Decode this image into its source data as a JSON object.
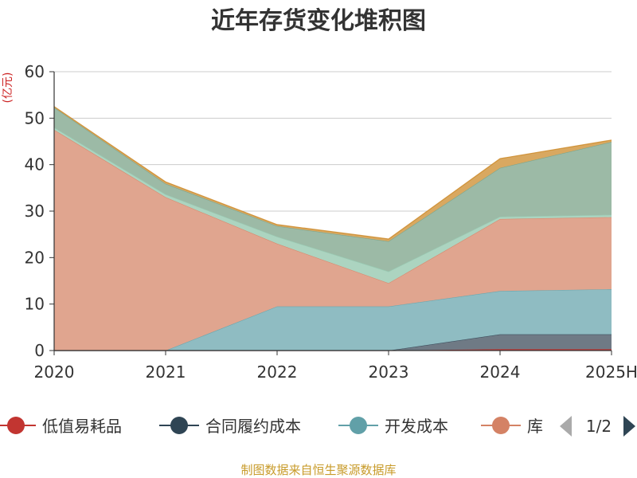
{
  "chart_data": {
    "type": "area",
    "stacked": true,
    "title": "近年存货变化堆积图",
    "unit_label": "(亿元)",
    "categories": [
      "2020",
      "2021",
      "2022",
      "2023",
      "2024",
      "2025H"
    ],
    "ylim": [
      0,
      60
    ],
    "y_ticks": [
      "0",
      "10",
      "20",
      "30",
      "40",
      "50",
      "60"
    ],
    "grid": true,
    "legend_position": "bottom",
    "series": [
      {
        "name": "低值易耗品",
        "color": "#c23531",
        "values": [
          0,
          0,
          0,
          0,
          0.3,
          0.3
        ],
        "area_color": "#c23531"
      },
      {
        "name": "合同履约成本",
        "color": "#2f4554",
        "values": [
          0,
          0,
          0,
          0,
          3.2,
          3.2
        ],
        "area_color": "#6f7a85"
      },
      {
        "name": "开发成本",
        "color": "#61a0a8",
        "values": [
          0,
          0,
          9.5,
          9.5,
          9.3,
          9.7
        ],
        "area_color": "#8fbcc2"
      },
      {
        "name": "库存商品",
        "color": "#d48265",
        "values": [
          47.5,
          33,
          13.5,
          5,
          15.5,
          15.5
        ],
        "area_color": "#e0a58f"
      },
      {
        "name": "",
        "color": "#91c7ae",
        "values": [
          0.5,
          0.6,
          1.5,
          2.5,
          0.5,
          0.5
        ],
        "area_color": "#acd4c0"
      },
      {
        "name": "",
        "color": "#749f83",
        "values": [
          4.3,
          2.3,
          2.3,
          6.5,
          10.5,
          15.7
        ],
        "area_color": "#9cbaa6"
      },
      {
        "name": "",
        "color": "#ca8622",
        "values": [
          0.2,
          0.4,
          0.3,
          0.5,
          2,
          0.4
        ],
        "area_color": "#d9a860"
      }
    ],
    "legend_visible_items": [
      "低值易耗品",
      "合同履约成本",
      "开发成本",
      "库"
    ],
    "legend_page": "1/2"
  },
  "source_text": "制图数据来自恒生聚源数据库"
}
